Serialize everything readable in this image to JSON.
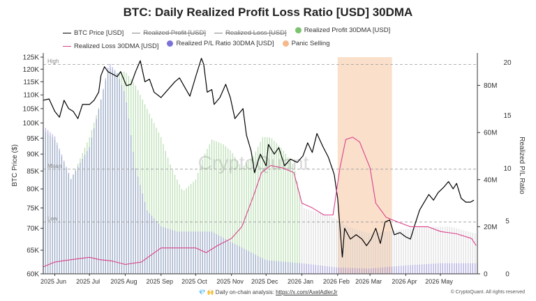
{
  "title": "BTC: Daily Realized Profit Loss Ratio [USD] 30DMA",
  "legend": [
    {
      "label": "BTC Price [USD]",
      "kind": "line",
      "color": "#000000",
      "active": true
    },
    {
      "label": "Realized Profit [USD]",
      "kind": "line",
      "color": "#888888",
      "active": false
    },
    {
      "label": "Realized Loss [USD]",
      "kind": "line",
      "color": "#888888",
      "active": false
    },
    {
      "label": "Realized Profit 30DMA [USD]",
      "kind": "dot",
      "color": "#7cc36f",
      "active": true
    },
    {
      "label": "Realized Loss 30DMA [USD]",
      "kind": "line",
      "color": "#d9418a",
      "active": true
    },
    {
      "label": "Realized P/L Ratio 30DMA [USD]",
      "kind": "dot",
      "color": "#7a72d8",
      "active": true
    },
    {
      "label": "Panic Selling",
      "kind": "dot",
      "color": "#f5b98c",
      "active": true
    }
  ],
  "watermark": "CryptoQuant",
  "footer": {
    "prefix": "💎 🙌 Daily on-chain analysis:",
    "link": "https://x.com/AxelAdlerJr"
  },
  "credit": "© CryptoQuant. All rights reserved",
  "chart_data": {
    "type": "line",
    "xlabel": "",
    "x_tick_labels": [
      "2025 Jun",
      "2025 Jul",
      "2025 Aug",
      "2025 Sep",
      "2025 Oct",
      "2025 Nov",
      "2025 Dec",
      "2026 Jan",
      "2026 Feb",
      "2026 Mar",
      "2026 Apr",
      "2026 May"
    ],
    "x_range": [
      "2025-05-22",
      "2026-06-02"
    ],
    "left_axis": {
      "label": "BTC Price ($)",
      "scale": "log",
      "ylim": [
        60000,
        125000
      ],
      "ticks": [
        60000,
        65000,
        70000,
        75000,
        80000,
        85000,
        90000,
        95000,
        100000,
        105000,
        110000,
        115000,
        120000,
        125000
      ],
      "tick_labels": [
        "60K",
        "65K",
        "70K",
        "75K",
        "80K",
        "85K",
        "90K",
        "95K",
        "100K",
        "105K",
        "110K",
        "115K",
        "120K",
        "125K"
      ]
    },
    "mid_axis": {
      "ylim": [
        0,
        92000000
      ],
      "ticks": [
        0,
        20000000,
        40000000,
        60000000,
        80000000
      ],
      "tick_labels": [
        "0",
        "20M",
        "40M",
        "60M",
        "80M"
      ]
    },
    "right_axis": {
      "label": "Realized P/L Ratio",
      "ylim": [
        0,
        20.5
      ],
      "ticks": [
        0,
        5,
        10,
        15,
        20
      ],
      "tick_labels": [
        "0",
        "5",
        "10",
        "15",
        "20"
      ]
    },
    "reference_lines": [
      {
        "label": "High",
        "value": 19.8
      },
      {
        "label": "Mean",
        "value": 9.9
      },
      {
        "label": "Low",
        "value": 4.9
      }
    ],
    "grid": false,
    "series": [
      {
        "name": "BTC Price [USD]",
        "axis": "left",
        "color": "#000000",
        "points": [
          [
            "2025-05-22",
            108000
          ],
          [
            "2025-05-27",
            108500
          ],
          [
            "2025-06-01",
            104000
          ],
          [
            "2025-06-05",
            102000
          ],
          [
            "2025-06-09",
            108000
          ],
          [
            "2025-06-13",
            105000
          ],
          [
            "2025-06-17",
            104000
          ],
          [
            "2025-06-21",
            101500
          ],
          [
            "2025-06-25",
            106500
          ],
          [
            "2025-07-01",
            106500
          ],
          [
            "2025-07-05",
            108000
          ],
          [
            "2025-07-09",
            111000
          ],
          [
            "2025-07-11",
            117500
          ],
          [
            "2025-07-14",
            121000
          ],
          [
            "2025-07-17",
            119000
          ],
          [
            "2025-07-21",
            118000
          ],
          [
            "2025-07-25",
            117000
          ],
          [
            "2025-07-28",
            119000
          ],
          [
            "2025-08-02",
            113500
          ],
          [
            "2025-08-06",
            114000
          ],
          [
            "2025-08-10",
            119000
          ],
          [
            "2025-08-14",
            123500
          ],
          [
            "2025-08-18",
            115000
          ],
          [
            "2025-08-22",
            116000
          ],
          [
            "2025-08-26",
            111000
          ],
          [
            "2025-09-01",
            109000
          ],
          [
            "2025-09-05",
            111000
          ],
          [
            "2025-09-09",
            113000
          ],
          [
            "2025-09-13",
            115000
          ],
          [
            "2025-09-17",
            116500
          ],
          [
            "2025-09-22",
            112500
          ],
          [
            "2025-09-26",
            109500
          ],
          [
            "2025-10-01",
            117000
          ],
          [
            "2025-10-06",
            124500
          ],
          [
            "2025-10-08",
            122000
          ],
          [
            "2025-10-11",
            111000
          ],
          [
            "2025-10-15",
            112000
          ],
          [
            "2025-10-17",
            106500
          ],
          [
            "2025-10-22",
            109000
          ],
          [
            "2025-10-27",
            114000
          ],
          [
            "2025-10-31",
            109000
          ],
          [
            "2025-11-04",
            101500
          ],
          [
            "2025-11-07",
            103000
          ],
          [
            "2025-11-11",
            105000
          ],
          [
            "2025-11-14",
            96000
          ],
          [
            "2025-11-18",
            91000
          ],
          [
            "2025-11-21",
            84500
          ],
          [
            "2025-11-26",
            90000
          ],
          [
            "2025-12-01",
            86500
          ],
          [
            "2025-12-03",
            93000
          ],
          [
            "2025-12-08",
            90000
          ],
          [
            "2025-12-12",
            92000
          ],
          [
            "2025-12-17",
            86500
          ],
          [
            "2025-12-22",
            88500
          ],
          [
            "2025-12-28",
            87500
          ],
          [
            "2026-01-02",
            89500
          ],
          [
            "2026-01-06",
            93500
          ],
          [
            "2026-01-10",
            90500
          ],
          [
            "2026-01-14",
            96500
          ],
          [
            "2026-01-19",
            92500
          ],
          [
            "2026-01-24",
            89000
          ],
          [
            "2026-01-29",
            84000
          ],
          [
            "2026-02-01",
            77500
          ],
          [
            "2026-02-05",
            63500
          ],
          [
            "2026-02-07",
            70000
          ],
          [
            "2026-02-12",
            67500
          ],
          [
            "2026-02-17",
            68500
          ],
          [
            "2026-02-22",
            67500
          ],
          [
            "2026-02-26",
            66000
          ],
          [
            "2026-03-02",
            67500
          ],
          [
            "2026-03-06",
            70000
          ],
          [
            "2026-03-10",
            66500
          ],
          [
            "2026-03-14",
            71500
          ],
          [
            "2026-03-18",
            72000
          ],
          [
            "2026-03-22",
            68500
          ],
          [
            "2026-03-27",
            69000
          ],
          [
            "2026-04-01",
            68000
          ],
          [
            "2026-04-05",
            67500
          ],
          [
            "2026-04-09",
            71000
          ],
          [
            "2026-04-13",
            74500
          ],
          [
            "2026-04-17",
            76500
          ],
          [
            "2026-04-21",
            78500
          ],
          [
            "2026-04-25",
            77000
          ],
          [
            "2026-04-29",
            79000
          ],
          [
            "2026-05-04",
            80500
          ],
          [
            "2026-05-08",
            82000
          ],
          [
            "2026-05-12",
            80000
          ],
          [
            "2026-05-15",
            81500
          ],
          [
            "2026-05-19",
            77500
          ],
          [
            "2026-05-23",
            76500
          ],
          [
            "2026-05-27",
            76500
          ],
          [
            "2026-05-30",
            77000
          ]
        ]
      },
      {
        "name": "Realized Loss 30DMA [USD]",
        "axis": "mid",
        "color": "#d9418a",
        "points": [
          [
            "2025-05-22",
            3000000
          ],
          [
            "2025-06-01",
            5000000
          ],
          [
            "2025-06-15",
            6000000
          ],
          [
            "2025-07-01",
            7000000
          ],
          [
            "2025-07-10",
            6000000
          ],
          [
            "2025-07-20",
            5500000
          ],
          [
            "2025-08-01",
            4000000
          ],
          [
            "2025-08-15",
            5000000
          ],
          [
            "2025-09-01",
            11000000
          ],
          [
            "2025-09-15",
            11000000
          ],
          [
            "2025-10-01",
            11000000
          ],
          [
            "2025-10-10",
            9000000
          ],
          [
            "2025-10-20",
            12000000
          ],
          [
            "2025-11-01",
            15000000
          ],
          [
            "2025-11-10",
            20000000
          ],
          [
            "2025-11-20",
            33000000
          ],
          [
            "2025-11-27",
            43000000
          ],
          [
            "2025-12-05",
            46000000
          ],
          [
            "2025-12-15",
            45000000
          ],
          [
            "2025-12-25",
            43000000
          ],
          [
            "2026-01-01",
            30000000
          ],
          [
            "2026-01-10",
            28000000
          ],
          [
            "2026-01-20",
            25000000
          ],
          [
            "2026-01-28",
            25000000
          ],
          [
            "2026-02-03",
            45000000
          ],
          [
            "2026-02-08",
            57000000
          ],
          [
            "2026-02-14",
            58000000
          ],
          [
            "2026-02-20",
            56000000
          ],
          [
            "2026-03-01",
            45000000
          ],
          [
            "2026-03-06",
            30000000
          ],
          [
            "2026-03-15",
            24000000
          ],
          [
            "2026-03-25",
            22000000
          ],
          [
            "2026-04-05",
            20000000
          ],
          [
            "2026-04-20",
            20000000
          ],
          [
            "2026-05-01",
            18000000
          ],
          [
            "2026-05-15",
            17000000
          ],
          [
            "2026-05-28",
            15000000
          ],
          [
            "2026-06-01",
            12000000
          ]
        ]
      },
      {
        "name": "Realized Profit 30DMA [USD]",
        "axis": "mid",
        "color": "#7cc36f",
        "render": "bars",
        "points": [
          [
            "2025-05-22",
            61000000
          ],
          [
            "2025-06-01",
            57000000
          ],
          [
            "2025-06-15",
            40000000
          ],
          [
            "2025-07-01",
            58000000
          ],
          [
            "2025-07-10",
            72000000
          ],
          [
            "2025-07-18",
            88000000
          ],
          [
            "2025-07-25",
            85000000
          ],
          [
            "2025-08-01",
            86000000
          ],
          [
            "2025-08-10",
            80000000
          ],
          [
            "2025-08-20",
            70000000
          ],
          [
            "2025-09-01",
            58000000
          ],
          [
            "2025-09-10",
            45000000
          ],
          [
            "2025-09-20",
            35000000
          ],
          [
            "2025-10-01",
            40000000
          ],
          [
            "2025-10-08",
            50000000
          ],
          [
            "2025-10-15",
            57000000
          ],
          [
            "2025-10-25",
            55000000
          ],
          [
            "2025-11-01",
            52000000
          ],
          [
            "2025-11-10",
            45000000
          ],
          [
            "2025-11-20",
            50000000
          ],
          [
            "2025-11-28",
            58000000
          ],
          [
            "2025-12-05",
            58000000
          ],
          [
            "2025-12-15",
            53000000
          ],
          [
            "2025-12-25",
            46000000
          ],
          [
            "2026-01-02",
            28000000
          ],
          [
            "2026-01-15",
            26000000
          ],
          [
            "2026-01-28",
            24000000
          ],
          [
            "2026-02-10",
            20000000
          ],
          [
            "2026-03-01",
            17000000
          ],
          [
            "2026-03-15",
            18000000
          ],
          [
            "2026-04-01",
            19000000
          ],
          [
            "2026-04-20",
            20000000
          ],
          [
            "2026-05-10",
            20000000
          ],
          [
            "2026-06-01",
            17000000
          ]
        ]
      },
      {
        "name": "Realized P/L Ratio 30DMA [USD]",
        "axis": "right",
        "color": "#7a72d8",
        "render": "bars",
        "points": [
          [
            "2025-05-22",
            14
          ],
          [
            "2025-06-01",
            13
          ],
          [
            "2025-06-15",
            9
          ],
          [
            "2025-07-01",
            12
          ],
          [
            "2025-07-10",
            16
          ],
          [
            "2025-07-18",
            20
          ],
          [
            "2025-07-25",
            19
          ],
          [
            "2025-08-01",
            17
          ],
          [
            "2025-08-10",
            10
          ],
          [
            "2025-08-20",
            6
          ],
          [
            "2025-09-01",
            4.5
          ],
          [
            "2025-09-15",
            4
          ],
          [
            "2025-10-01",
            4
          ],
          [
            "2025-10-15",
            4
          ],
          [
            "2025-11-01",
            3
          ],
          [
            "2025-12-01",
            1.3
          ],
          [
            "2026-01-01",
            1.0
          ],
          [
            "2026-02-01",
            0.6
          ],
          [
            "2026-03-01",
            0.5
          ],
          [
            "2026-04-01",
            0.8
          ],
          [
            "2026-05-01",
            1.0
          ],
          [
            "2026-06-01",
            1.0
          ]
        ]
      },
      {
        "name": "Panic Selling",
        "axis": "right",
        "color": "#f5b98c",
        "render": "band",
        "ranges": [
          [
            "2026-02-01",
            "2026-03-20"
          ]
        ]
      }
    ]
  }
}
